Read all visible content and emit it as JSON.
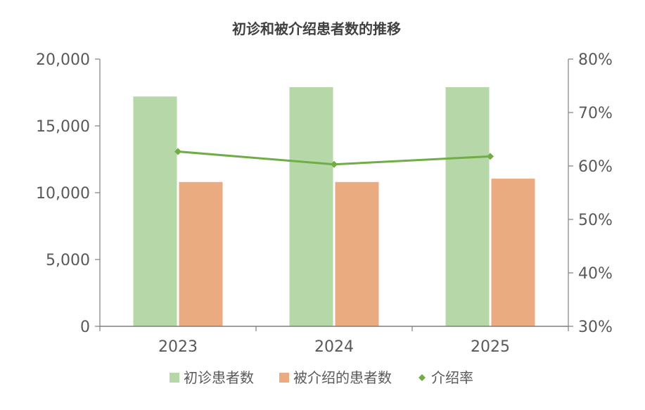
{
  "chart_data": {
    "type": "bar",
    "title": "初诊和被介绍患者数的推移",
    "categories": [
      "2023",
      "2024",
      "2025"
    ],
    "series": [
      {
        "name": "初诊患者数",
        "type": "bar",
        "axis": "left",
        "color": "#b6d7a8",
        "values": [
          17200,
          17900,
          17900
        ]
      },
      {
        "name": "被介绍的患者数",
        "type": "bar",
        "axis": "left",
        "color": "#ebab80",
        "values": [
          10800,
          10800,
          11050
        ]
      },
      {
        "name": "介绍率",
        "type": "line",
        "axis": "right",
        "color": "#70ad47",
        "values": [
          0.627,
          0.603,
          0.618
        ]
      }
    ],
    "y_left": {
      "min": 0,
      "max": 20000,
      "ticks": [
        "0",
        "5,000",
        "10,000",
        "15,000",
        "20,000"
      ]
    },
    "y_right": {
      "min": 0.3,
      "max": 0.8,
      "ticks": [
        "30%",
        "40%",
        "50%",
        "60%",
        "70%",
        "80%"
      ]
    },
    "legend_position": "bottom",
    "grid": false
  }
}
